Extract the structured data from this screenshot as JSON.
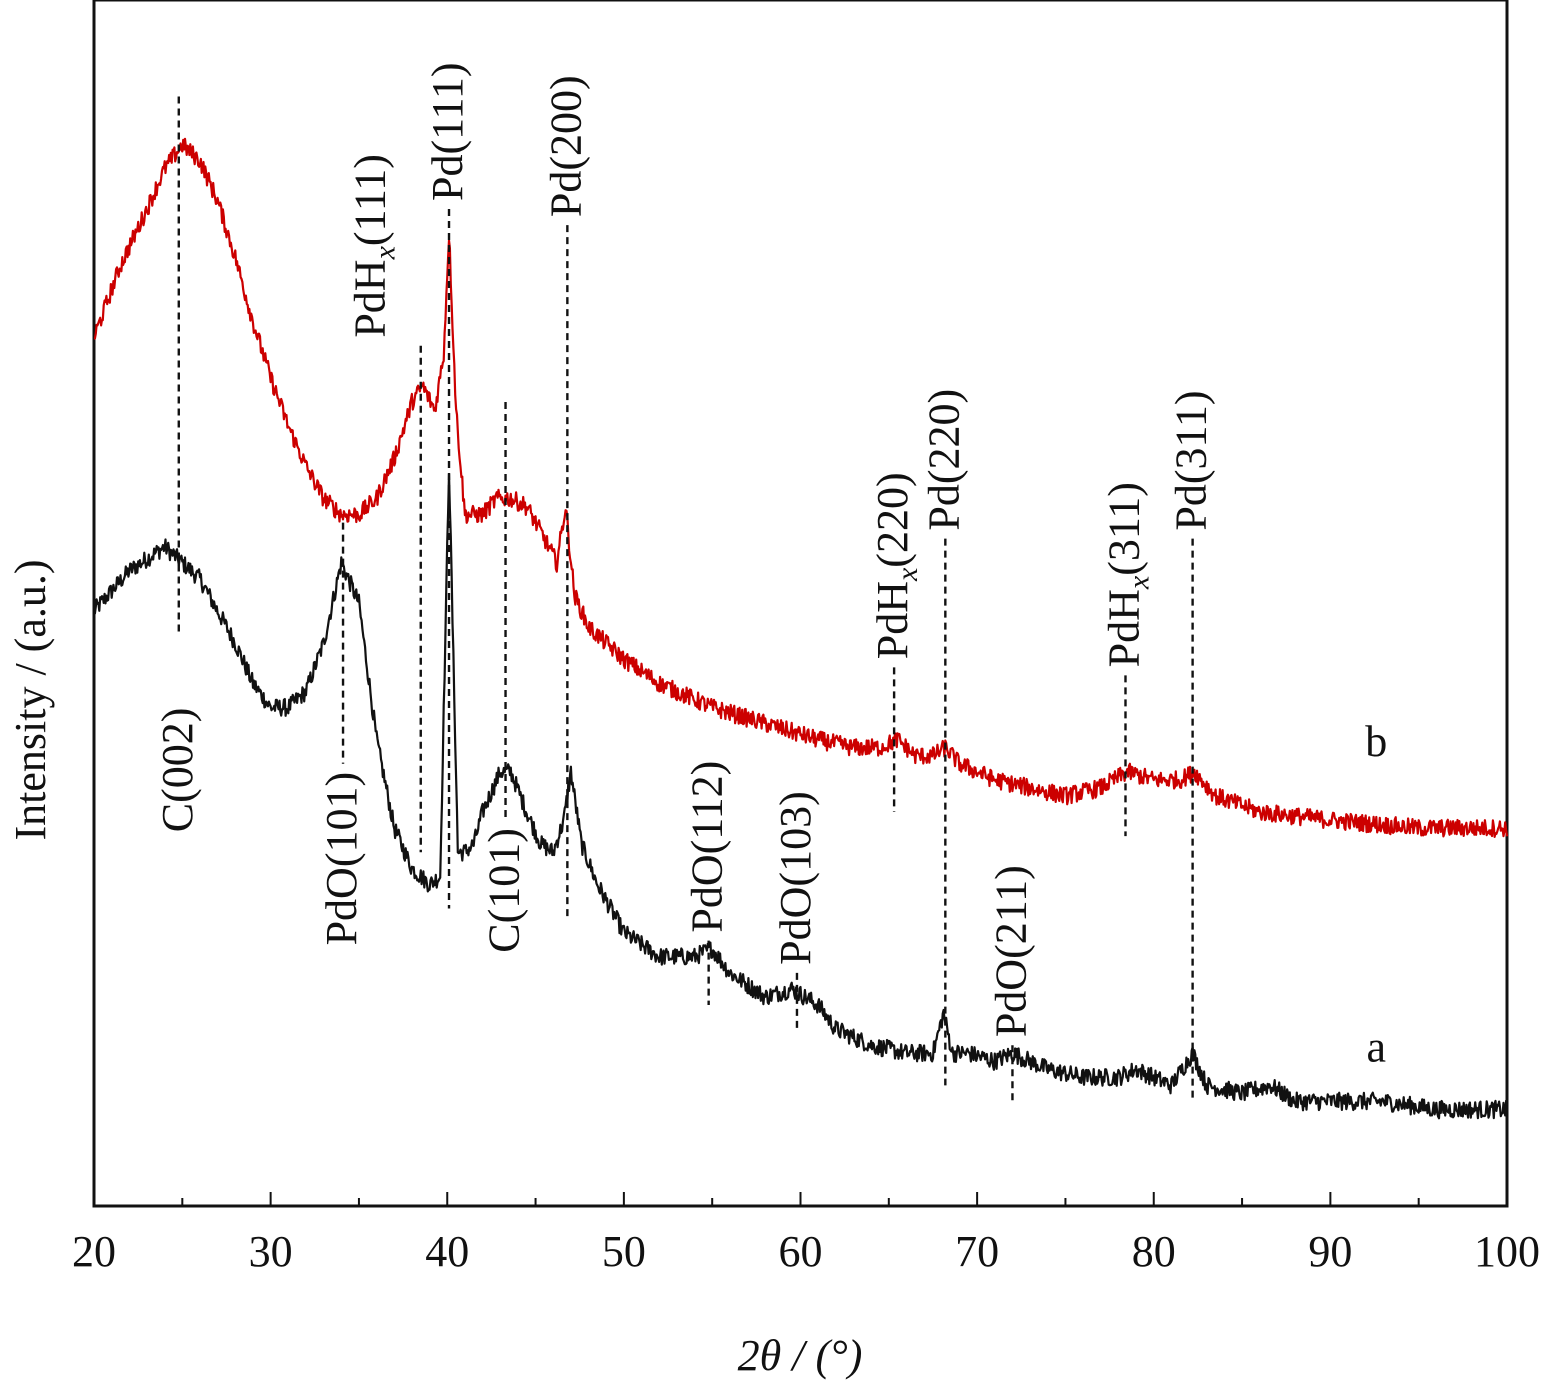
{
  "chart_data": {
    "type": "line",
    "xlabel": "2θ / (°)",
    "ylabel": "Intensity / (a.u.)",
    "xlim": [
      20,
      100
    ],
    "x_ticks": [
      20,
      30,
      40,
      50,
      60,
      70,
      80,
      90,
      100
    ],
    "y_ticks": [],
    "grid": false,
    "legend": "none",
    "colors": {
      "a": "#111111",
      "b": "#cc0000"
    },
    "series": [
      {
        "name": "a",
        "color": "#111111",
        "x": [
          20,
          22,
          24,
          26,
          28,
          29,
          30,
          31,
          32,
          33,
          34,
          35,
          36,
          37,
          38,
          39,
          39.6,
          40.1,
          40.6,
          41,
          41.5,
          42,
          43,
          43.6,
          44.5,
          45.3,
          46,
          46.6,
          47,
          47.6,
          48.5,
          50,
          52,
          54,
          55,
          56,
          58,
          59.5,
          61,
          62,
          64,
          66,
          67.5,
          68.1,
          68.6,
          69.5,
          71,
          72,
          74,
          76,
          78,
          79,
          81,
          82.2,
          83,
          85,
          86.6,
          88,
          90,
          93,
          96,
          100
        ],
        "y": [
          0.74,
          0.79,
          0.82,
          0.78,
          0.7,
          0.65,
          0.62,
          0.62,
          0.64,
          0.7,
          0.8,
          0.75,
          0.58,
          0.47,
          0.42,
          0.4,
          0.41,
          0.92,
          0.44,
          0.44,
          0.45,
          0.49,
          0.54,
          0.54,
          0.49,
          0.45,
          0.44,
          0.48,
          0.54,
          0.45,
          0.4,
          0.34,
          0.31,
          0.31,
          0.32,
          0.29,
          0.26,
          0.27,
          0.25,
          0.22,
          0.2,
          0.19,
          0.19,
          0.24,
          0.19,
          0.19,
          0.18,
          0.19,
          0.17,
          0.16,
          0.16,
          0.17,
          0.15,
          0.19,
          0.15,
          0.14,
          0.15,
          0.13,
          0.13,
          0.13,
          0.12,
          0.12
        ]
      },
      {
        "name": "b",
        "color": "#cc0000",
        "x": [
          20,
          21.5,
          23,
          24,
          25,
          26,
          27,
          28,
          29,
          30,
          31,
          32,
          33,
          34,
          35,
          36,
          37,
          38,
          38.6,
          39.3,
          39.8,
          40.1,
          40.5,
          41,
          42,
          42.8,
          43.6,
          44.5,
          45.5,
          46.2,
          46.7,
          47.2,
          48,
          50,
          52,
          55,
          58,
          61,
          63,
          64.5,
          65.5,
          66.5,
          67.5,
          68.2,
          69,
          71,
          73,
          75,
          77,
          78.5,
          80,
          81.5,
          82.3,
          83.5,
          86,
          90,
          95,
          100
        ],
        "y": [
          1.08,
          1.17,
          1.24,
          1.29,
          1.32,
          1.3,
          1.25,
          1.18,
          1.1,
          1.03,
          0.97,
          0.92,
          0.88,
          0.86,
          0.86,
          0.88,
          0.93,
          1.0,
          1.02,
          0.99,
          1.06,
          1.21,
          0.99,
          0.86,
          0.86,
          0.88,
          0.88,
          0.87,
          0.83,
          0.8,
          0.87,
          0.76,
          0.72,
          0.68,
          0.65,
          0.62,
          0.6,
          0.58,
          0.57,
          0.57,
          0.58,
          0.56,
          0.56,
          0.57,
          0.55,
          0.53,
          0.52,
          0.51,
          0.52,
          0.54,
          0.53,
          0.53,
          0.54,
          0.51,
          0.49,
          0.48,
          0.47,
          0.47
        ]
      }
    ],
    "series_labels": [
      {
        "text": "b",
        "x": 92.6,
        "y": 0.56
      },
      {
        "text": "a",
        "x": 92.6,
        "y": 0.18
      }
    ],
    "annotations": [
      {
        "text": "C(002)",
        "x": 24.8,
        "line_top": 1.38,
        "line_bottom": 0.71,
        "label_y": 0.62,
        "label_side": "below"
      },
      {
        "text": "PdO(101)",
        "x": 34.1,
        "line_top": 0.85,
        "line_bottom": 0.55,
        "label_y": 0.54,
        "label_side": "below"
      },
      {
        "text": "PdH",
        "sub": "x",
        "rest": "(111)",
        "x": 38.5,
        "line_top": 1.07,
        "line_bottom": 0.44,
        "label_y": 1.08,
        "label_side": "above",
        "label_dx": -2.8
      },
      {
        "text": "Pd(111)",
        "x": 40.1,
        "line_top": 1.24,
        "line_bottom": 0.37,
        "label_y": 1.25,
        "label_side": "above"
      },
      {
        "text": "C(101)",
        "x": 43.3,
        "line_top": 1.0,
        "line_bottom": 0.48,
        "label_y": 0.47,
        "label_side": "below"
      },
      {
        "text": "Pd(200)",
        "x": 46.8,
        "line_top": 1.22,
        "line_bottom": 0.36,
        "label_y": 1.23,
        "label_side": "above"
      },
      {
        "text": "PdO(112)",
        "x": 54.8,
        "line_top": 0.33,
        "line_bottom": 0.25,
        "label_y": 0.34,
        "label_side": "above"
      },
      {
        "text": "PdO(103)",
        "x": 59.8,
        "line_top": 0.29,
        "line_bottom": 0.22,
        "label_y": 0.3,
        "label_side": "above"
      },
      {
        "text": "PdH",
        "sub": "x",
        "rest": "(220)",
        "x": 65.3,
        "line_top": 0.67,
        "line_bottom": 0.49,
        "label_y": 0.68,
        "label_side": "above"
      },
      {
        "text": "Pd(220)",
        "x": 68.2,
        "line_top": 0.83,
        "line_bottom": 0.15,
        "label_y": 0.84,
        "label_side": "above"
      },
      {
        "text": "PdO(211)",
        "x": 72.0,
        "line_top": 0.2,
        "line_bottom": 0.13,
        "label_y": 0.21,
        "label_side": "above"
      },
      {
        "text": "PdH",
        "sub": "x",
        "rest": "(311)",
        "x": 78.4,
        "line_top": 0.66,
        "line_bottom": 0.46,
        "label_y": 0.67,
        "label_side": "above"
      },
      {
        "text": "Pd(311)",
        "x": 82.2,
        "line_top": 0.83,
        "line_bottom": 0.13,
        "label_y": 0.84,
        "label_side": "above"
      }
    ]
  }
}
